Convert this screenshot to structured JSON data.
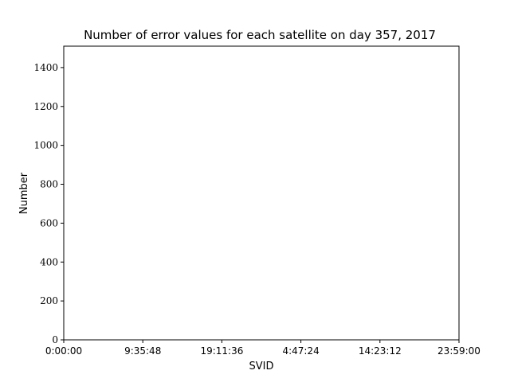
{
  "chart_data": {
    "type": "bar",
    "title": "Number of error values for each satellite on day 357, 2017",
    "xlabel": "SVID",
    "ylabel": "Number",
    "ylim": [
      0,
      1510
    ],
    "yticks": [
      0,
      200,
      400,
      600,
      800,
      1000,
      1200,
      1400
    ],
    "xticklabels": [
      "0:00:00",
      "9:35:48",
      "19:11:36",
      "4:47:24",
      "14:23:12",
      "23:59:00"
    ],
    "series": [],
    "grid": false,
    "legend": "none"
  }
}
